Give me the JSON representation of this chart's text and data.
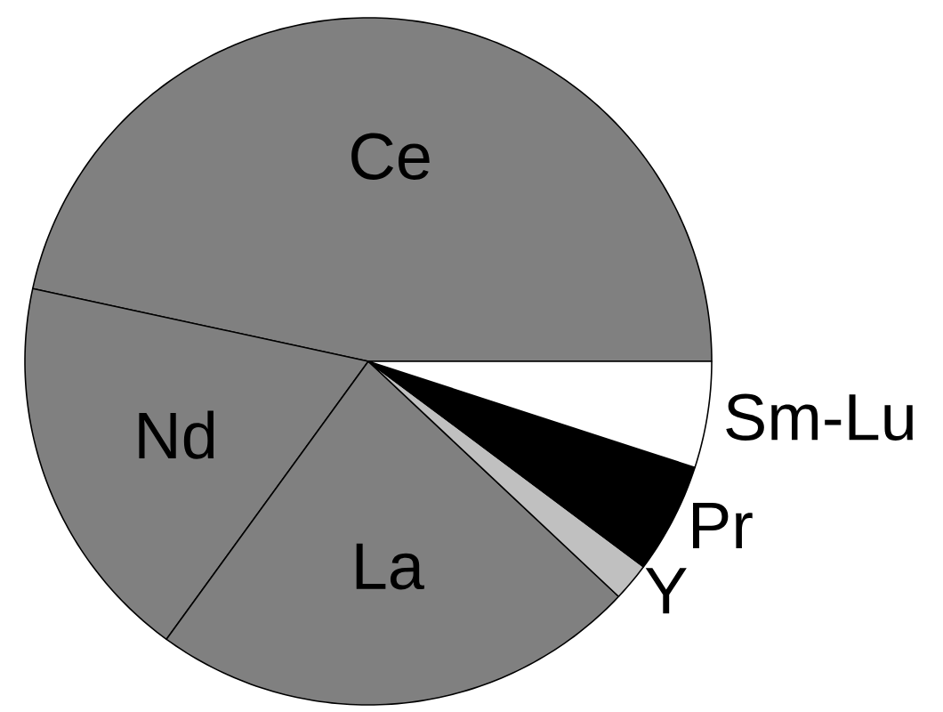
{
  "chart_data": {
    "type": "pie",
    "categories": [
      "Ce",
      "Nd",
      "La",
      "Y",
      "Pr",
      "Sm-Lu"
    ],
    "values": [
      46.6,
      18.4,
      23.0,
      1.8,
      5.2,
      5.0
    ],
    "colors": [
      "#808080",
      "#808080",
      "#808080",
      "#c0c0c0",
      "#000000",
      "#ffffff"
    ]
  }
}
